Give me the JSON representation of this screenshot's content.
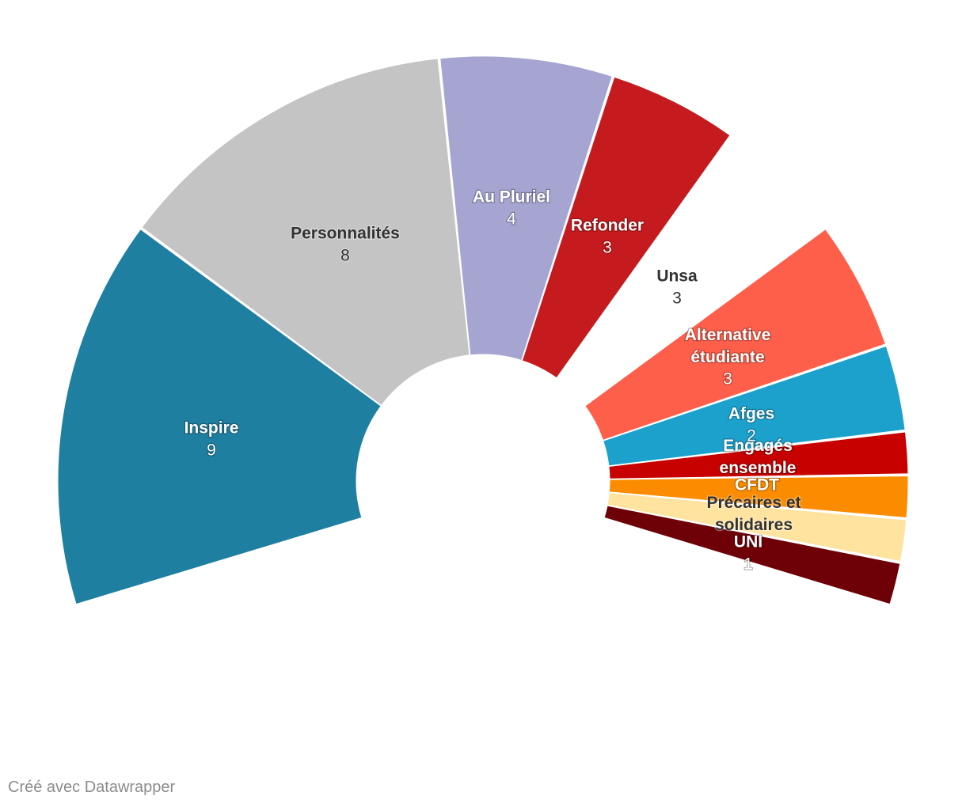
{
  "chart_data": {
    "type": "pie",
    "subtype": "parliament-semicircle",
    "categories": [
      "Inspire",
      "Personnalités",
      "Au Pluriel",
      "Refonder",
      "Unsa",
      "Alternative étudiante",
      "Afges",
      "Engagés ensemble",
      "CFDT",
      "Précaires et solidaires",
      "UNI"
    ],
    "values": [
      9,
      8,
      4,
      3,
      3,
      3,
      2,
      1,
      1,
      1,
      1
    ],
    "value_labels": [
      "9",
      "8",
      "4",
      "3",
      "3",
      "3",
      "2",
      "",
      "",
      "",
      "1"
    ],
    "colors": [
      "#1f7fa1",
      "#c4c4c4",
      "#a6a5d2",
      "#c51b1e",
      "#ffffff",
      "#fe5f4a",
      "#1ba1cc",
      "#c70000",
      "#fb8c00",
      "#ffe39f",
      "#6e0007"
    ],
    "label_tone": [
      "light",
      "dark",
      "light",
      "light",
      "dark",
      "light",
      "light",
      "light",
      "light",
      "dark",
      "light"
    ],
    "title": "",
    "legend": "none"
  },
  "footer": {
    "credit": "Créé avec Datawrapper"
  }
}
